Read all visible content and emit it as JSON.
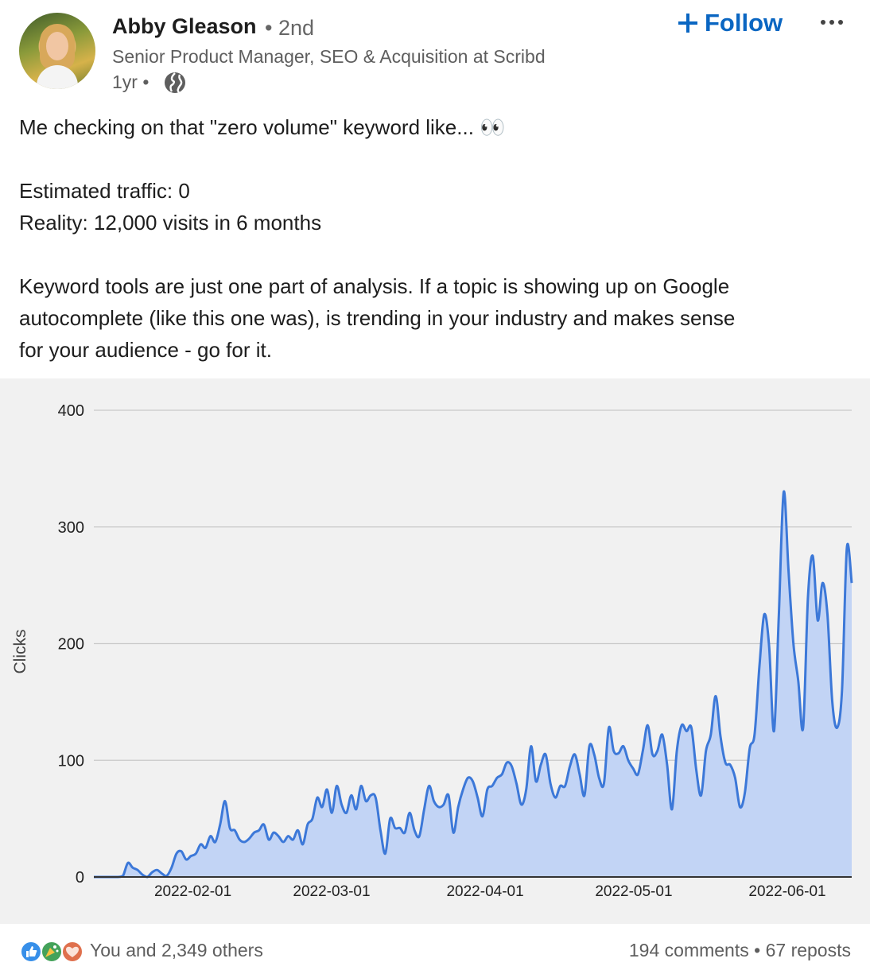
{
  "author": {
    "name": "Abby Gleason",
    "degree": "• 2nd",
    "headline": "Senior Product Manager, SEO & Acquisition at Scribd",
    "time": "1yr •",
    "visibility_icon": "globe-icon"
  },
  "actions": {
    "follow_label": "Follow",
    "follow_icon": "plus-icon",
    "more_icon": "ellipsis-icon"
  },
  "post": {
    "line1": "Me checking on that \"zero volume\" keyword like... 👀",
    "line2": "Estimated traffic: 0",
    "line3": "Reality: 12,000 visits in 6 months",
    "line4": "Keyword tools are just one part of analysis. If a topic is showing up on Google",
    "line5": "autocomplete (like this one was), is trending in your industry and makes sense",
    "line6": "for your audience - go for it."
  },
  "chart_data": {
    "type": "area",
    "ylabel": "Clicks",
    "ylim": [
      0,
      400
    ],
    "yticks": [
      0,
      100,
      200,
      300,
      400
    ],
    "xticks": [
      "2022-02-01",
      "2022-03-01",
      "2022-04-01",
      "2022-05-01",
      "2022-06-01"
    ],
    "grid": true,
    "color": "#3c78d8",
    "fill": "#c2d4f5",
    "x_start": "2022-01-12",
    "x_end": "2022-06-14",
    "values": [
      0,
      0,
      0,
      0,
      0,
      0,
      1,
      12,
      8,
      6,
      2,
      0,
      4,
      6,
      3,
      1,
      8,
      20,
      22,
      15,
      18,
      20,
      28,
      25,
      35,
      30,
      45,
      65,
      42,
      40,
      32,
      30,
      33,
      38,
      40,
      45,
      32,
      38,
      35,
      30,
      35,
      32,
      40,
      28,
      45,
      50,
      68,
      60,
      75,
      55,
      78,
      62,
      55,
      70,
      58,
      78,
      65,
      70,
      68,
      40,
      20,
      50,
      42,
      42,
      38,
      55,
      40,
      35,
      58,
      78,
      65,
      60,
      62,
      70,
      38,
      60,
      75,
      85,
      82,
      68,
      52,
      75,
      78,
      85,
      88,
      98,
      95,
      80,
      62,
      75,
      112,
      82,
      96,
      105,
      80,
      68,
      78,
      78,
      95,
      105,
      88,
      70,
      112,
      105,
      85,
      80,
      128,
      108,
      106,
      112,
      100,
      93,
      88,
      108,
      130,
      105,
      108,
      122,
      96,
      58,
      108,
      130,
      125,
      128,
      92,
      70,
      108,
      122,
      155,
      120,
      98,
      96,
      85,
      60,
      72,
      110,
      122,
      180,
      225,
      198,
      125,
      225,
      330,
      262,
      200,
      168,
      128,
      240,
      275,
      220,
      252,
      225,
      150,
      128,
      160,
      282,
      252
    ],
    "footer_reactions": "You and 2,349 others",
    "comments": "194 comments",
    "reposts": "67 reposts"
  },
  "footer": {
    "reactions_text": "You and 2,349 others",
    "separator": "•",
    "comments": "194 comments",
    "reposts": "67 reposts",
    "reaction_icons": [
      "like-icon",
      "celebrate-icon",
      "love-icon"
    ]
  }
}
